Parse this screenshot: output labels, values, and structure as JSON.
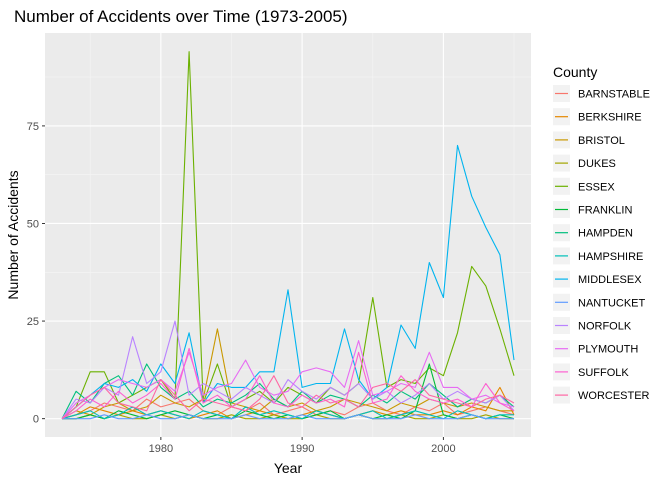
{
  "chart_data": {
    "type": "line",
    "title": "Number of Accidents over Time (1973-2005)",
    "xlabel": "Year",
    "ylabel": "Number of Accidents",
    "xlim": [
      1971.8,
      2006.2
    ],
    "ylim": [
      -4.7,
      98.8
    ],
    "xticks": [
      1980,
      1990,
      2000
    ],
    "yticks": [
      0,
      25,
      50,
      75
    ],
    "grid": true,
    "legend_title": "County",
    "legend_position": "right",
    "x": [
      1973,
      1974,
      1975,
      1976,
      1977,
      1978,
      1979,
      1980,
      1981,
      1982,
      1983,
      1984,
      1985,
      1986,
      1987,
      1988,
      1989,
      1990,
      1991,
      1992,
      1993,
      1994,
      1995,
      1996,
      1997,
      1998,
      1999,
      2000,
      2001,
      2002,
      2003,
      2004,
      2005
    ],
    "series": [
      {
        "name": "BARNSTABLE",
        "color": "#F8766D",
        "values": [
          0,
          1,
          2,
          4,
          3,
          2,
          5,
          3,
          4,
          5,
          2,
          1,
          3,
          2,
          4,
          1,
          2,
          3,
          1,
          2,
          1,
          3,
          4,
          2,
          1,
          3,
          2,
          4,
          1,
          2,
          3,
          2,
          1
        ]
      },
      {
        "name": "BERKSHIRE",
        "color": "#E58700",
        "values": [
          0,
          1,
          3,
          2,
          1,
          2,
          1,
          2,
          1,
          0,
          1,
          2,
          0,
          1,
          2,
          1,
          0,
          1,
          2,
          1,
          0,
          1,
          2,
          1,
          2,
          1,
          1,
          2,
          1,
          3,
          2,
          8,
          1
        ]
      },
      {
        "name": "BRISTOL",
        "color": "#C99800",
        "values": [
          0,
          2,
          1,
          3,
          4,
          2,
          3,
          6,
          4,
          3,
          5,
          23,
          4,
          3,
          2,
          5,
          3,
          4,
          2,
          3,
          5,
          4,
          3,
          2,
          4,
          3,
          5,
          4,
          3,
          4,
          3,
          2,
          2
        ]
      },
      {
        "name": "DUKES",
        "color": "#A3A500",
        "values": [
          0,
          0,
          1,
          0,
          1,
          0,
          0,
          1,
          0,
          1,
          0,
          0,
          1,
          0,
          0,
          1,
          0,
          0,
          1,
          0,
          0,
          1,
          0,
          0,
          1,
          0,
          0,
          1,
          0,
          0,
          1,
          0,
          0
        ]
      },
      {
        "name": "ESSEX",
        "color": "#6BB100",
        "values": [
          0,
          3,
          12,
          12,
          4,
          6,
          8,
          10,
          5,
          94,
          4,
          14,
          3,
          5,
          7,
          4,
          8,
          6,
          4,
          8,
          6,
          9,
          31,
          8,
          10,
          9,
          13,
          11,
          22,
          39,
          34,
          23,
          11
        ]
      },
      {
        "name": "FRANKLIN",
        "color": "#00BA38",
        "values": [
          0,
          0,
          1,
          0,
          2,
          1,
          0,
          1,
          2,
          1,
          0,
          1,
          0,
          2,
          1,
          0,
          1,
          0,
          1,
          2,
          0,
          1,
          0,
          1,
          0,
          2,
          14,
          1,
          0,
          1,
          0,
          1,
          0
        ]
      },
      {
        "name": "HAMPDEN",
        "color": "#00BF7D",
        "values": [
          0,
          7,
          4,
          9,
          11,
          6,
          14,
          8,
          5,
          7,
          3,
          5,
          4,
          6,
          9,
          5,
          3,
          7,
          4,
          6,
          5,
          3,
          6,
          4,
          7,
          5,
          9,
          6,
          3,
          5,
          4,
          6,
          3
        ]
      },
      {
        "name": "HAMPSHIRE",
        "color": "#00C0B8",
        "values": [
          0,
          1,
          2,
          0,
          1,
          3,
          1,
          2,
          1,
          0,
          2,
          1,
          0,
          3,
          1,
          2,
          1,
          0,
          2,
          1,
          0,
          1,
          2,
          0,
          1,
          2,
          1,
          0,
          2,
          1,
          0,
          1,
          1
        ]
      },
      {
        "name": "MIDDLESEX",
        "color": "#00B4EF",
        "values": [
          0,
          3,
          6,
          9,
          8,
          10,
          7,
          14,
          9,
          22,
          4,
          9,
          8,
          8,
          12,
          12,
          33,
          8,
          9,
          9,
          23,
          10,
          5,
          8,
          24,
          18,
          40,
          31,
          70,
          57,
          49,
          42,
          15
        ]
      },
      {
        "name": "NANTUCKET",
        "color": "#619CFF",
        "values": [
          0,
          0,
          0,
          1,
          0,
          0,
          1,
          0,
          0,
          1,
          0,
          0,
          0,
          1,
          0,
          0,
          0,
          1,
          0,
          0,
          0,
          1,
          0,
          0,
          0,
          1,
          0,
          0,
          0,
          1,
          0,
          0,
          0
        ]
      },
      {
        "name": "NORFOLK",
        "color": "#B983FF",
        "values": [
          0,
          5,
          4,
          8,
          6,
          21,
          9,
          12,
          25,
          6,
          9,
          7,
          5,
          8,
          6,
          4,
          10,
          7,
          5,
          8,
          6,
          9,
          5,
          7,
          4,
          6,
          9,
          5,
          7,
          5,
          4,
          6,
          2
        ]
      },
      {
        "name": "PLYMOUTH",
        "color": "#E76BF3",
        "values": [
          0,
          4,
          6,
          8,
          10,
          9,
          8,
          10,
          7,
          17,
          6,
          8,
          9,
          15,
          8,
          6,
          7,
          12,
          13,
          12,
          8,
          20,
          6,
          7,
          9,
          8,
          17,
          8,
          8,
          5,
          6,
          4,
          3
        ]
      },
      {
        "name": "SUFFOLK",
        "color": "#FD61D1",
        "values": [
          0,
          2,
          5,
          3,
          7,
          4,
          6,
          9,
          5,
          18,
          4,
          6,
          3,
          5,
          11,
          4,
          3,
          6,
          4,
          5,
          3,
          17,
          4,
          5,
          11,
          7,
          5,
          4,
          5,
          3,
          9,
          4,
          2
        ]
      },
      {
        "name": "WORCESTER",
        "color": "#FF67A4",
        "values": [
          0,
          3,
          6,
          8,
          4,
          3,
          2,
          10,
          6,
          2,
          5,
          4,
          3,
          2,
          5,
          11,
          4,
          3,
          6,
          4,
          5,
          3,
          8,
          9,
          7,
          10,
          6,
          5,
          4,
          3,
          5,
          6,
          4
        ]
      }
    ]
  }
}
